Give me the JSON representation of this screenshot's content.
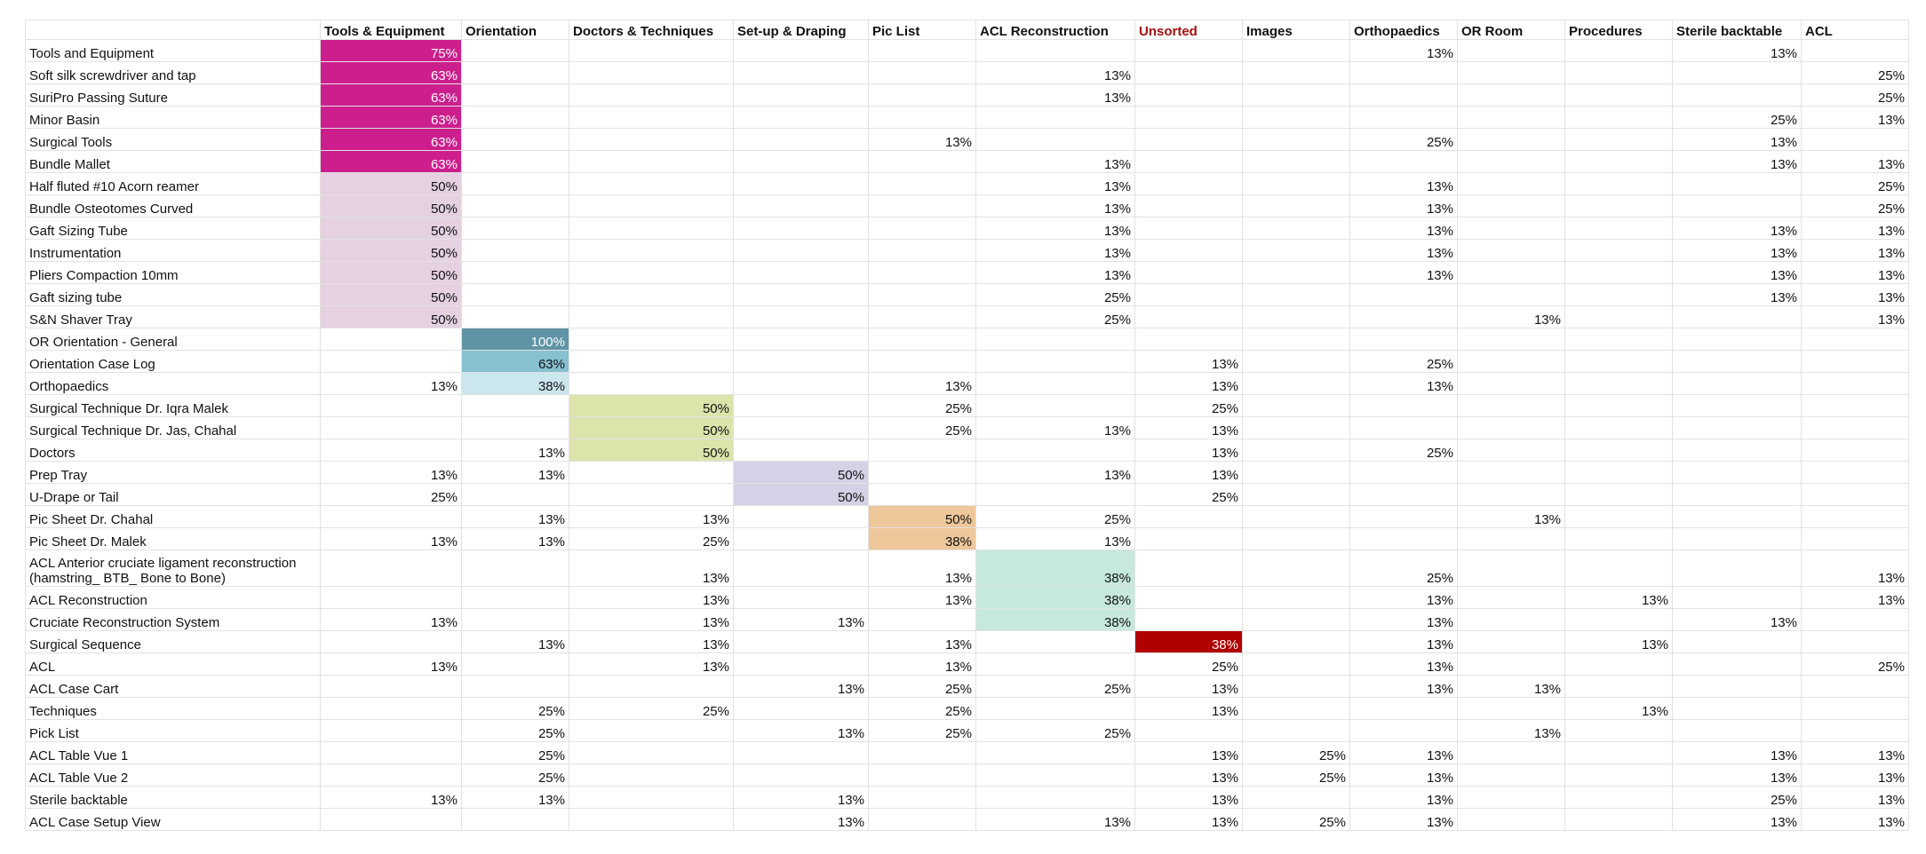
{
  "columns": [
    "",
    "Tools & Equipment",
    "Orientation",
    "Doctors & Techniques",
    "Set-up & Draping",
    "Pic List",
    "ACL Reconstruction",
    "Unsorted",
    "Images",
    "Orthopaedics",
    "OR Room",
    "Procedures",
    "Sterile backtable",
    "ACL"
  ],
  "highlight_header_index": 7,
  "colors": {
    "magenta": "#cc1f8d",
    "light_pink": "#e5d1e2",
    "teal_dark": "#5f94a4",
    "teal_mid": "#86c0d1",
    "teal_light": "#cce6ee",
    "olive_light": "#dce3ab",
    "lavender": "#d6d1e6",
    "peach": "#eec79a",
    "mint": "#c6e8de",
    "dark_red": "#b00000",
    "header_red_text": "#a50e0e",
    "grid_line": "#e2e2e2"
  },
  "rows": [
    {
      "label": "Tools and Equipment",
      "cells": [
        "75%",
        "",
        "",
        "",
        "",
        "",
        "",
        "",
        "13%",
        "",
        "",
        "13%",
        ""
      ]
    },
    {
      "label": "Soft silk screwdriver and tap",
      "cells": [
        "63%",
        "",
        "",
        "",
        "",
        "13%",
        "",
        "",
        "",
        "",
        "",
        "",
        "25%"
      ]
    },
    {
      "label": "SuriPro Passing Suture",
      "cells": [
        "63%",
        "",
        "",
        "",
        "",
        "13%",
        "",
        "",
        "",
        "",
        "",
        "",
        "25%"
      ]
    },
    {
      "label": "Minor Basin",
      "cells": [
        "63%",
        "",
        "",
        "",
        "",
        "",
        "",
        "",
        "",
        "",
        "",
        "25%",
        "13%"
      ]
    },
    {
      "label": "Surgical Tools",
      "cells": [
        "63%",
        "",
        "",
        "",
        "13%",
        "",
        "",
        "",
        "25%",
        "",
        "",
        "13%",
        ""
      ]
    },
    {
      "label": "Bundle Mallet",
      "cells": [
        "63%",
        "",
        "",
        "",
        "",
        "13%",
        "",
        "",
        "",
        "",
        "",
        "13%",
        "13%"
      ]
    },
    {
      "label": "Half fluted #10 Acorn reamer",
      "cells": [
        "50%",
        "",
        "",
        "",
        "",
        "13%",
        "",
        "",
        "13%",
        "",
        "",
        "",
        "25%"
      ]
    },
    {
      "label": "Bundle Osteotomes Curved",
      "cells": [
        "50%",
        "",
        "",
        "",
        "",
        "13%",
        "",
        "",
        "13%",
        "",
        "",
        "",
        "25%"
      ]
    },
    {
      "label": "Gaft Sizing Tube",
      "cells": [
        "50%",
        "",
        "",
        "",
        "",
        "13%",
        "",
        "",
        "13%",
        "",
        "",
        "13%",
        "13%"
      ]
    },
    {
      "label": "Instrumentation",
      "cells": [
        "50%",
        "",
        "",
        "",
        "",
        "13%",
        "",
        "",
        "13%",
        "",
        "",
        "13%",
        "13%"
      ]
    },
    {
      "label": "Pliers Compaction 10mm",
      "cells": [
        "50%",
        "",
        "",
        "",
        "",
        "13%",
        "",
        "",
        "13%",
        "",
        "",
        "13%",
        "13%"
      ]
    },
    {
      "label": "Gaft sizing tube",
      "cells": [
        "50%",
        "",
        "",
        "",
        "",
        "25%",
        "",
        "",
        "",
        "",
        "",
        "13%",
        "13%"
      ]
    },
    {
      "label": "S&N Shaver Tray",
      "cells": [
        "50%",
        "",
        "",
        "",
        "",
        "25%",
        "",
        "",
        "",
        "13%",
        "",
        "",
        "13%"
      ]
    },
    {
      "label": "OR Orientation - General",
      "cells": [
        "",
        "100%",
        "",
        "",
        "",
        "",
        "",
        "",
        "",
        "",
        "",
        "",
        ""
      ]
    },
    {
      "label": "Orientation Case Log",
      "cells": [
        "",
        "63%",
        "",
        "",
        "",
        "",
        "13%",
        "",
        "25%",
        "",
        "",
        "",
        ""
      ]
    },
    {
      "label": "Orthopaedics",
      "cells": [
        "13%",
        "38%",
        "",
        "",
        "13%",
        "",
        "13%",
        "",
        "13%",
        "",
        "",
        "",
        ""
      ]
    },
    {
      "label": "Surgical Technique Dr. Iqra Malek",
      "cells": [
        "",
        "",
        "50%",
        "",
        "25%",
        "",
        "25%",
        "",
        "",
        "",
        "",
        "",
        ""
      ]
    },
    {
      "label": "Surgical Technique Dr. Jas, Chahal",
      "cells": [
        "",
        "",
        "50%",
        "",
        "25%",
        "13%",
        "13%",
        "",
        "",
        "",
        "",
        "",
        ""
      ]
    },
    {
      "label": "Doctors",
      "cells": [
        "",
        "13%",
        "50%",
        "",
        "",
        "",
        "13%",
        "",
        "25%",
        "",
        "",
        "",
        ""
      ]
    },
    {
      "label": "Prep Tray",
      "cells": [
        "13%",
        "13%",
        "",
        "50%",
        "",
        "13%",
        "13%",
        "",
        "",
        "",
        "",
        "",
        ""
      ]
    },
    {
      "label": "U-Drape or Tail",
      "cells": [
        "25%",
        "",
        "",
        "50%",
        "",
        "",
        "25%",
        "",
        "",
        "",
        "",
        "",
        ""
      ]
    },
    {
      "label": "Pic Sheet Dr. Chahal",
      "cells": [
        "",
        "13%",
        "13%",
        "",
        "50%",
        "25%",
        "",
        "",
        "",
        "13%",
        "",
        "",
        ""
      ]
    },
    {
      "label": "Pic Sheet Dr. Malek",
      "cells": [
        "13%",
        "13%",
        "25%",
        "",
        "38%",
        "13%",
        "",
        "",
        "",
        "",
        "",
        "",
        ""
      ]
    },
    {
      "label": "ACL Anterior cruciate ligament reconstruction (hamstring_ BTB_ Bone to Bone)",
      "cells": [
        "",
        "",
        "13%",
        "",
        "13%",
        "38%",
        "",
        "",
        "25%",
        "",
        "",
        "",
        "13%"
      ]
    },
    {
      "label": "ACL Reconstruction",
      "cells": [
        "",
        "",
        "13%",
        "",
        "13%",
        "38%",
        "",
        "",
        "13%",
        "",
        "13%",
        "",
        "13%"
      ]
    },
    {
      "label": "Cruciate Reconstruction System",
      "cells": [
        "13%",
        "",
        "13%",
        "13%",
        "",
        "38%",
        "",
        "",
        "13%",
        "",
        "",
        "13%",
        ""
      ]
    },
    {
      "label": "Surgical Sequence",
      "cells": [
        "",
        "13%",
        "13%",
        "",
        "13%",
        "",
        "38%",
        "",
        "13%",
        "",
        "13%",
        "",
        ""
      ]
    },
    {
      "label": "ACL",
      "cells": [
        "13%",
        "",
        "13%",
        "",
        "13%",
        "",
        "25%",
        "",
        "13%",
        "",
        "",
        "",
        "25%"
      ]
    },
    {
      "label": "ACL Case Cart",
      "cells": [
        "",
        "",
        "",
        "13%",
        "25%",
        "25%",
        "13%",
        "",
        "13%",
        "13%",
        "",
        "",
        ""
      ]
    },
    {
      "label": "Techniques",
      "cells": [
        "",
        "25%",
        "25%",
        "",
        "25%",
        "",
        "13%",
        "",
        "",
        "",
        "13%",
        "",
        ""
      ]
    },
    {
      "label": "Pick List",
      "cells": [
        "",
        "25%",
        "",
        "13%",
        "25%",
        "25%",
        "",
        "",
        "",
        "13%",
        "",
        "",
        ""
      ]
    },
    {
      "label": "ACL Table Vue 1",
      "cells": [
        "",
        "25%",
        "",
        "",
        "",
        "",
        "13%",
        "25%",
        "13%",
        "",
        "",
        "13%",
        "13%"
      ]
    },
    {
      "label": "ACL Table Vue 2",
      "cells": [
        "",
        "25%",
        "",
        "",
        "",
        "",
        "13%",
        "25%",
        "13%",
        "",
        "",
        "13%",
        "13%"
      ]
    },
    {
      "label": "Sterile backtable",
      "cells": [
        "13%",
        "13%",
        "",
        "13%",
        "",
        "",
        "13%",
        "",
        "13%",
        "",
        "",
        "25%",
        "13%"
      ]
    },
    {
      "label": "ACL Case Setup View",
      "cells": [
        "",
        "",
        "",
        "13%",
        "",
        "13%",
        "13%",
        "25%",
        "13%",
        "",
        "",
        "13%",
        "13%"
      ]
    }
  ],
  "highlights": [
    {
      "row": 0,
      "col": 0,
      "color": "magenta",
      "white_text": true
    },
    {
      "row": 1,
      "col": 0,
      "color": "magenta",
      "white_text": true
    },
    {
      "row": 2,
      "col": 0,
      "color": "magenta",
      "white_text": true
    },
    {
      "row": 3,
      "col": 0,
      "color": "magenta",
      "white_text": true
    },
    {
      "row": 4,
      "col": 0,
      "color": "magenta",
      "white_text": true
    },
    {
      "row": 5,
      "col": 0,
      "color": "magenta",
      "white_text": true
    },
    {
      "row": 6,
      "col": 0,
      "color": "light_pink",
      "white_text": false
    },
    {
      "row": 7,
      "col": 0,
      "color": "light_pink",
      "white_text": false
    },
    {
      "row": 8,
      "col": 0,
      "color": "light_pink",
      "white_text": false
    },
    {
      "row": 9,
      "col": 0,
      "color": "light_pink",
      "white_text": false
    },
    {
      "row": 10,
      "col": 0,
      "color": "light_pink",
      "white_text": false
    },
    {
      "row": 11,
      "col": 0,
      "color": "light_pink",
      "white_text": false
    },
    {
      "row": 12,
      "col": 0,
      "color": "light_pink",
      "white_text": false
    },
    {
      "row": 13,
      "col": 1,
      "color": "teal_dark",
      "white_text": true
    },
    {
      "row": 14,
      "col": 1,
      "color": "teal_mid",
      "white_text": false
    },
    {
      "row": 15,
      "col": 1,
      "color": "teal_light",
      "white_text": false
    },
    {
      "row": 16,
      "col": 2,
      "color": "olive_light",
      "white_text": false
    },
    {
      "row": 17,
      "col": 2,
      "color": "olive_light",
      "white_text": false
    },
    {
      "row": 18,
      "col": 2,
      "color": "olive_light",
      "white_text": false
    },
    {
      "row": 19,
      "col": 3,
      "color": "lavender",
      "white_text": false
    },
    {
      "row": 20,
      "col": 3,
      "color": "lavender",
      "white_text": false
    },
    {
      "row": 21,
      "col": 4,
      "color": "peach",
      "white_text": false
    },
    {
      "row": 22,
      "col": 4,
      "color": "peach",
      "white_text": false
    },
    {
      "row": 23,
      "col": 5,
      "color": "mint",
      "white_text": false
    },
    {
      "row": 24,
      "col": 5,
      "color": "mint",
      "white_text": false
    },
    {
      "row": 25,
      "col": 5,
      "color": "mint",
      "white_text": false
    },
    {
      "row": 26,
      "col": 6,
      "color": "dark_red",
      "white_text": true
    }
  ]
}
